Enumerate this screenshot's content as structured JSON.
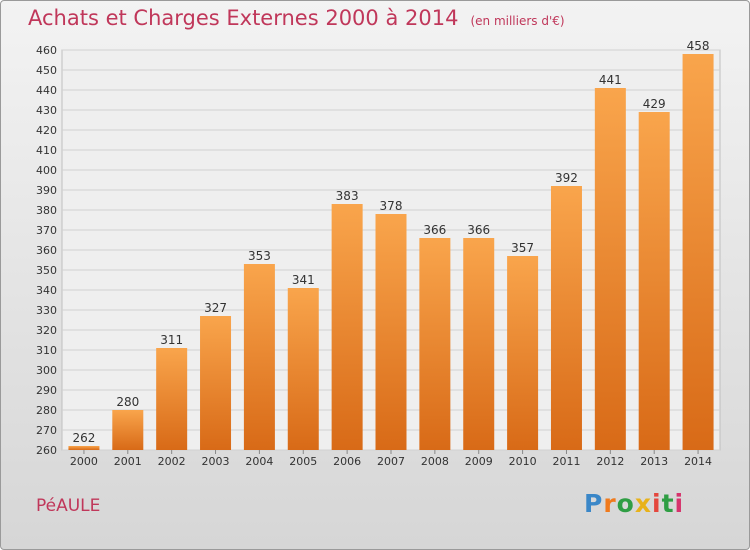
{
  "title": "Achats et Charges Externes 2000 à 2014",
  "unit": "(en milliers d'€)",
  "place": "PéAULE",
  "logo": {
    "letters": [
      "P",
      "r",
      "o",
      "x",
      "i",
      "t",
      "i"
    ],
    "colors": [
      "#3a87c8",
      "#f07a1c",
      "#2f9e44",
      "#e8b21a",
      "#e4473d",
      "#2f9e44",
      "#d6336c"
    ]
  },
  "colors": {
    "bar_light": "#f9a54c",
    "bar_dark": "#d86a17",
    "title": "#c0375a"
  },
  "chart_data": {
    "type": "bar",
    "title": "Achats et Charges Externes 2000 à 2014",
    "subtitle": "(en milliers d'€)",
    "categories": [
      "2000",
      "2001",
      "2002",
      "2003",
      "2004",
      "2005",
      "2006",
      "2007",
      "2008",
      "2009",
      "2010",
      "2011",
      "2012",
      "2013",
      "2014"
    ],
    "values": [
      262,
      280,
      311,
      327,
      353,
      341,
      383,
      378,
      366,
      366,
      357,
      392,
      441,
      429,
      458
    ],
    "xlabel": "",
    "ylabel": "",
    "ylim": [
      260,
      460
    ],
    "yticks": [
      260,
      270,
      280,
      290,
      300,
      310,
      320,
      330,
      340,
      350,
      360,
      370,
      380,
      390,
      400,
      410,
      420,
      430,
      440,
      450,
      460
    ],
    "grid": true
  }
}
